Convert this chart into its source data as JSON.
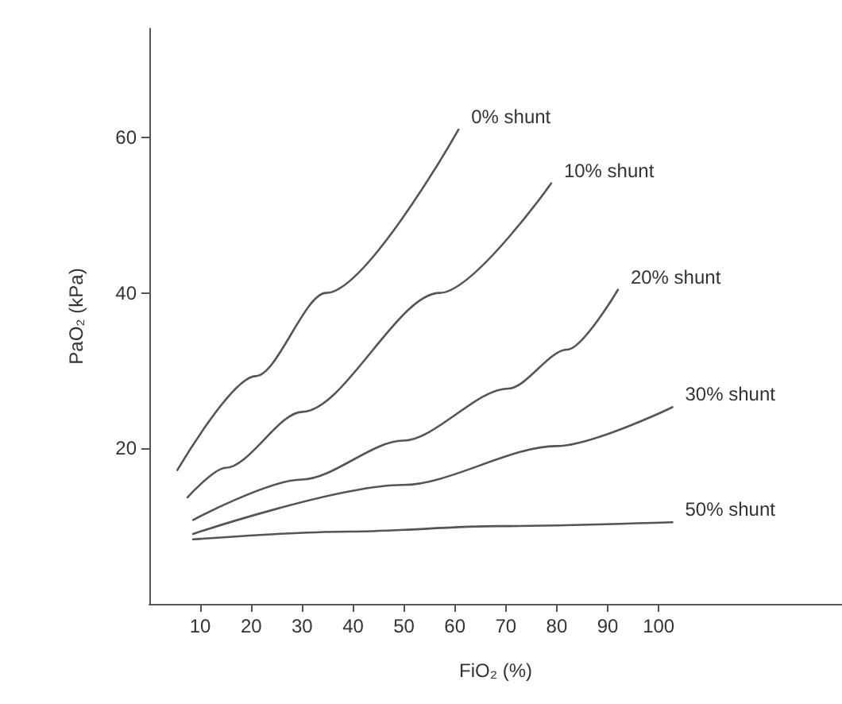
{
  "chart_data": {
    "type": "line",
    "xlabel": "FiO₂ (%)",
    "ylabel": "PaO₂ (kPa)",
    "xlim": [
      0,
      136
    ],
    "ylim": [
      0,
      74
    ],
    "xticks": [
      10,
      20,
      30,
      40,
      50,
      60,
      70,
      80,
      90,
      100
    ],
    "yticks": [
      20,
      40,
      60
    ],
    "grid": false,
    "legend": false,
    "marker": "none",
    "line_style": "solid",
    "series": [
      {
        "name": "0% shunt",
        "color": "#555555",
        "x": [
          5.5,
          20.9,
          34.7,
          60.7
        ],
        "values": [
          17.2,
          29.3,
          40,
          61
        ]
      },
      {
        "name": "10% shunt",
        "color": "#555555",
        "x": [
          7.5,
          15,
          30,
          57,
          78.9
        ],
        "values": [
          13.7,
          17.5,
          24.7,
          40,
          54.1
        ]
      },
      {
        "name": "20% shunt",
        "color": "#555555",
        "x": [
          8.6,
          30,
          49.8,
          70.5,
          82,
          92
        ],
        "values": [
          10.8,
          16,
          21,
          27.7,
          32.7,
          40.4
        ]
      },
      {
        "name": "30% shunt",
        "color": "#555555",
        "x": [
          8.6,
          49.8,
          79.9,
          102.7
        ],
        "values": [
          9,
          15.3,
          20.3,
          25.3
        ]
      },
      {
        "name": "50% shunt",
        "color": "#555555",
        "x": [
          8.6,
          39.4,
          68.5,
          102.7
        ],
        "values": [
          8.3,
          9.3,
          10,
          10.5
        ]
      }
    ]
  }
}
